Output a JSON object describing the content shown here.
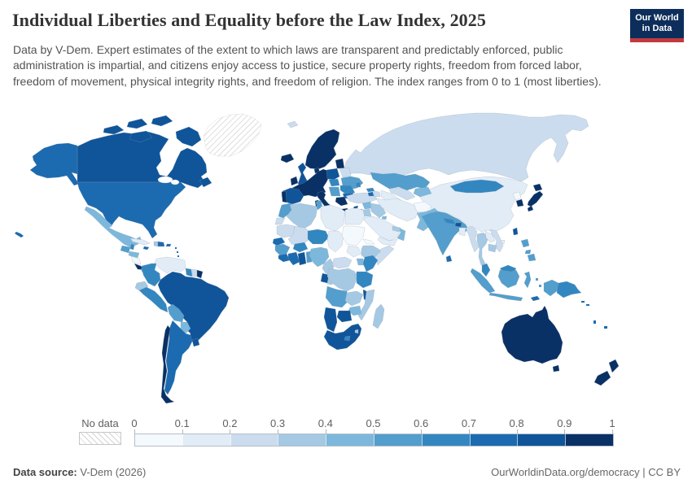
{
  "header": {
    "title": "Individual Liberties and Equality before the Law Index, 2025",
    "subtitle": "Data by V-Dem. Expert estimates of the extent to which laws are transparent and predictably enforced, public administration is impartial, and citizens enjoy access to justice, secure property rights, freedom from forced labor, freedom of movement, physical integrity rights, and freedom of religion. The index ranges from 0 to 1 (most liberties).",
    "logo": {
      "line1": "Our World",
      "line2": "in Data",
      "bg": "#0d2e5b",
      "accent": "#c23a3f"
    }
  },
  "legend": {
    "no_data_label": "No data",
    "ticks": [
      "0",
      "0.1",
      "0.2",
      "0.3",
      "0.4",
      "0.5",
      "0.6",
      "0.7",
      "0.8",
      "0.9",
      "1"
    ]
  },
  "footer": {
    "source_label": "Data source:",
    "source_value": " V-Dem (2026)",
    "right_text": "OurWorldinData.org/democracy | CC BY"
  },
  "chart_data": {
    "type": "heatmap",
    "subtype": "world-choropleth",
    "title": "Individual Liberties and Equality before the Law Index, 2025",
    "unit": "index",
    "range": [
      0,
      1
    ],
    "bin_edges": [
      0,
      0.1,
      0.2,
      0.3,
      0.4,
      0.5,
      0.6,
      0.7,
      0.8,
      0.9,
      1
    ],
    "palette": [
      "#f4f9fd",
      "#e2ecf7",
      "#cbdcef",
      "#a5c9e3",
      "#7db8dc",
      "#539ecc",
      "#3387c0",
      "#1c6bb0",
      "#10559a",
      "#0a3166"
    ],
    "no_data_pattern": "diagonal-hatch",
    "regions": [
      {
        "id": "canada",
        "name": "Canada",
        "value": 0.85
      },
      {
        "id": "greenland",
        "name": "Greenland",
        "value": null
      },
      {
        "id": "usa",
        "name": "United States",
        "value": 0.75
      },
      {
        "id": "mexico",
        "name": "Mexico",
        "value": 0.45
      },
      {
        "id": "guatemala",
        "name": "Guatemala",
        "value": 0.55
      },
      {
        "id": "belize",
        "name": "Belize",
        "value": 0.62
      },
      {
        "id": "honduras",
        "name": "Honduras",
        "value": 0.45
      },
      {
        "id": "nicaragua",
        "name": "Nicaragua",
        "value": 0.08
      },
      {
        "id": "costa-rica",
        "name": "Costa Rica",
        "value": 0.92
      },
      {
        "id": "panama",
        "name": "Panama",
        "value": 0.62
      },
      {
        "id": "cuba",
        "name": "Cuba",
        "value": 0.15
      },
      {
        "id": "jamaica",
        "name": "Jamaica",
        "value": 0.75
      },
      {
        "id": "haiti",
        "name": "Haiti",
        "value": 0.35
      },
      {
        "id": "dominican-republic",
        "name": "Dominican Republic",
        "value": 0.72
      },
      {
        "id": "puerto-rico",
        "name": "Puerto Rico",
        "value": 0.75
      },
      {
        "id": "lesser-antilles",
        "name": "Lesser Antilles",
        "value": 0.78
      },
      {
        "id": "trinidad-and-tobago",
        "name": "Trinidad and Tobago",
        "value": 0.72
      },
      {
        "id": "venezuela",
        "name": "Venezuela",
        "value": 0.12
      },
      {
        "id": "colombia",
        "name": "Colombia",
        "value": 0.65
      },
      {
        "id": "guyana",
        "name": "Guyana",
        "value": 0.62
      },
      {
        "id": "suriname",
        "name": "Suriname",
        "value": 0.25
      },
      {
        "id": "french-guiana",
        "name": "French Guiana",
        "value": 0.95
      },
      {
        "id": "ecuador",
        "name": "Ecuador",
        "value": 0.38
      },
      {
        "id": "peru",
        "name": "Peru",
        "value": 0.68
      },
      {
        "id": "brazil",
        "name": "Brazil",
        "value": 0.82
      },
      {
        "id": "bolivia",
        "name": "Bolivia",
        "value": 0.52
      },
      {
        "id": "paraguay",
        "name": "Paraguay",
        "value": 0.48
      },
      {
        "id": "uruguay",
        "name": "Uruguay",
        "value": 0.88
      },
      {
        "id": "argentina",
        "name": "Argentina",
        "value": 0.75
      },
      {
        "id": "chile",
        "name": "Chile",
        "value": 0.93
      },
      {
        "id": "iceland",
        "name": "Iceland",
        "value": 0.95
      },
      {
        "id": "united-kingdom",
        "name": "United Kingdom",
        "value": 0.85
      },
      {
        "id": "ireland",
        "name": "Ireland",
        "value": 0.95
      },
      {
        "id": "scandinavia",
        "name": "Norway, Sweden & Finland",
        "value": 0.95
      },
      {
        "id": "denmark",
        "name": "Denmark",
        "value": 0.95
      },
      {
        "id": "western-europe",
        "name": "Western & Central Europe",
        "value": 0.95
      },
      {
        "id": "spain",
        "name": "Spain",
        "value": 0.88
      },
      {
        "id": "portugal",
        "name": "Portugal",
        "value": 0.95
      },
      {
        "id": "italy",
        "name": "Italy",
        "value": 0.92
      },
      {
        "id": "poland",
        "name": "Poland",
        "value": 0.88
      },
      {
        "id": "baltic-states",
        "name": "Baltic states",
        "value": 0.9
      },
      {
        "id": "belarus",
        "name": "Belarus",
        "value": 0.25
      },
      {
        "id": "ukraine",
        "name": "Ukraine",
        "value": 0.55
      },
      {
        "id": "moldova",
        "name": "Moldova",
        "value": 0.68
      },
      {
        "id": "hungary-slovakia",
        "name": "Hungary & Slovakia",
        "value": 0.68
      },
      {
        "id": "romania",
        "name": "Romania",
        "value": 0.68
      },
      {
        "id": "bulgaria",
        "name": "Bulgaria",
        "value": 0.78
      },
      {
        "id": "balkans",
        "name": "Western Balkans",
        "value": 0.58
      },
      {
        "id": "greece",
        "name": "Greece",
        "value": 0.92
      },
      {
        "id": "russia",
        "name": "Russia",
        "value": 0.25
      },
      {
        "id": "svalbard",
        "name": "Svalbard",
        "value": 0.25
      },
      {
        "id": "turkey",
        "name": "Turkey",
        "value": 0.28
      },
      {
        "id": "cyprus",
        "name": "Cyprus",
        "value": 0.88
      },
      {
        "id": "georgia",
        "name": "Georgia",
        "value": 0.65
      },
      {
        "id": "armenia",
        "name": "Armenia",
        "value": 0.78
      },
      {
        "id": "azerbaijan",
        "name": "Azerbaijan",
        "value": 0.28
      },
      {
        "id": "kazakhstan",
        "name": "Kazakhstan",
        "value": 0.55
      },
      {
        "id": "uzbekistan",
        "name": "Uzbekistan",
        "value": 0.25
      },
      {
        "id": "turkmenistan",
        "name": "Turkmenistan",
        "value": 0.15
      },
      {
        "id": "kyrgyzstan-tajikistan",
        "name": "Kyrgyzstan & Tajikistan",
        "value": 0.45
      },
      {
        "id": "syria",
        "name": "Syria",
        "value": 0.45
      },
      {
        "id": "israel",
        "name": "Israel",
        "value": 0.72
      },
      {
        "id": "jordan",
        "name": "Jordan",
        "value": 0.35
      },
      {
        "id": "iraq",
        "name": "Iraq",
        "value": 0.3
      },
      {
        "id": "saudi-arabia",
        "name": "Saudi Arabia",
        "value": 0.12
      },
      {
        "id": "yemen",
        "name": "Yemen",
        "value": 0.12
      },
      {
        "id": "oman",
        "name": "Oman",
        "value": 0.45
      },
      {
        "id": "uae-qatar",
        "name": "UAE & Qatar",
        "value": 0.35
      },
      {
        "id": "kuwait",
        "name": "Kuwait",
        "value": 0.45
      },
      {
        "id": "iran",
        "name": "Iran",
        "value": 0.15
      },
      {
        "id": "afghanistan",
        "name": "Afghanistan",
        "value": 0.08
      },
      {
        "id": "pakistan",
        "name": "Pakistan",
        "value": 0.42
      },
      {
        "id": "india",
        "name": "India",
        "value": 0.52
      },
      {
        "id": "nepal",
        "name": "Nepal",
        "value": 0.62
      },
      {
        "id": "bhutan",
        "name": "Bhutan",
        "value": 0.85
      },
      {
        "id": "bangladesh",
        "name": "Bangladesh",
        "value": 0.15
      },
      {
        "id": "sri-lanka",
        "name": "Sri Lanka",
        "value": 0.72
      },
      {
        "id": "myanmar",
        "name": "Myanmar",
        "value": 0.22
      },
      {
        "id": "thailand",
        "name": "Thailand",
        "value": 0.32
      },
      {
        "id": "laos",
        "name": "Laos",
        "value": 0.18
      },
      {
        "id": "vietnam",
        "name": "Vietnam",
        "value": 0.25
      },
      {
        "id": "cambodia",
        "name": "Cambodia",
        "value": 0.32
      },
      {
        "id": "china",
        "name": "China",
        "value": 0.15
      },
      {
        "id": "mongolia",
        "name": "Mongolia",
        "value": 0.65
      },
      {
        "id": "north-korea",
        "name": "North Korea",
        "value": 0.08
      },
      {
        "id": "south-korea",
        "name": "South Korea",
        "value": 0.92
      },
      {
        "id": "japan",
        "name": "Japan",
        "value": 0.95
      },
      {
        "id": "taiwan",
        "name": "Taiwan",
        "value": 0.88
      },
      {
        "id": "philippines",
        "name": "Philippines",
        "value": 0.52
      },
      {
        "id": "malaysia",
        "name": "Malaysia",
        "value": 0.68
      },
      {
        "id": "indonesia",
        "name": "Indonesia",
        "value": 0.52
      },
      {
        "id": "timor-leste",
        "name": "Timor-Leste",
        "value": 0.75
      },
      {
        "id": "papua-new-guinea",
        "name": "Papua New Guinea",
        "value": 0.62
      },
      {
        "id": "solomon-islands",
        "name": "Solomon Islands",
        "value": 0.78
      },
      {
        "id": "vanuatu",
        "name": "Vanuatu",
        "value": 0.78
      },
      {
        "id": "fiji",
        "name": "Fiji",
        "value": 0.72
      },
      {
        "id": "australia",
        "name": "Australia",
        "value": 0.92
      },
      {
        "id": "new-zealand",
        "name": "New Zealand",
        "value": 0.95
      },
      {
        "id": "morocco",
        "name": "Morocco",
        "value": 0.52
      },
      {
        "id": "western-sahara",
        "name": "Western Sahara",
        "value": 0.25
      },
      {
        "id": "algeria",
        "name": "Algeria",
        "value": 0.32
      },
      {
        "id": "tunisia",
        "name": "Tunisia",
        "value": 0.52
      },
      {
        "id": "libya",
        "name": "Libya",
        "value": 0.1
      },
      {
        "id": "egypt",
        "name": "Egypt",
        "value": 0.18
      },
      {
        "id": "mauritania",
        "name": "Mauritania",
        "value": 0.25
      },
      {
        "id": "mali",
        "name": "Mali",
        "value": 0.28
      },
      {
        "id": "niger",
        "name": "Niger",
        "value": 0.62
      },
      {
        "id": "chad",
        "name": "Chad",
        "value": 0.1
      },
      {
        "id": "sudan",
        "name": "Sudan",
        "value": 0.08
      },
      {
        "id": "eritrea",
        "name": "Eritrea",
        "value": 0.08
      },
      {
        "id": "ethiopia",
        "name": "Ethiopia",
        "value": 0.32
      },
      {
        "id": "somalia",
        "name": "Somalia",
        "value": 0.22
      },
      {
        "id": "senegal",
        "name": "Senegal & Gambia",
        "value": 0.75
      },
      {
        "id": "guinea",
        "name": "Guinea",
        "value": 0.5
      },
      {
        "id": "sierra-leone-liberia",
        "name": "Sierra Leone & Liberia",
        "value": 0.7
      },
      {
        "id": "ivory-coast",
        "name": "Côte d'Ivoire",
        "value": 0.72
      },
      {
        "id": "ghana",
        "name": "Ghana",
        "value": 0.85
      },
      {
        "id": "togo-benin",
        "name": "Togo & Benin",
        "value": 0.5
      },
      {
        "id": "burkina-faso",
        "name": "Burkina Faso",
        "value": 0.62
      },
      {
        "id": "nigeria",
        "name": "Nigeria",
        "value": 0.48
      },
      {
        "id": "cameroon",
        "name": "Cameroon",
        "value": 0.35
      },
      {
        "id": "central-african-republic",
        "name": "Central African Republic",
        "value": 0.22
      },
      {
        "id": "south-sudan",
        "name": "South Sudan",
        "value": 0.15
      },
      {
        "id": "uganda",
        "name": "Uganda",
        "value": 0.42
      },
      {
        "id": "kenya",
        "name": "Kenya",
        "value": 0.62
      },
      {
        "id": "drc",
        "name": "Democratic Republic of Congo",
        "value": 0.3
      },
      {
        "id": "gabon",
        "name": "Gabon",
        "value": 0.82
      },
      {
        "id": "congo",
        "name": "Congo",
        "value": 0.38
      },
      {
        "id": "rwanda-burundi",
        "name": "Rwanda & Burundi",
        "value": 0.35
      },
      {
        "id": "tanzania",
        "name": "Tanzania",
        "value": 0.62
      },
      {
        "id": "angola",
        "name": "Angola",
        "value": 0.52
      },
      {
        "id": "zambia",
        "name": "Zambia",
        "value": 0.38
      },
      {
        "id": "malawi",
        "name": "Malawi",
        "value": 0.82
      },
      {
        "id": "mozambique",
        "name": "Mozambique",
        "value": 0.35
      },
      {
        "id": "zimbabwe",
        "name": "Zimbabwe",
        "value": 0.42
      },
      {
        "id": "botswana",
        "name": "Botswana",
        "value": 0.82
      },
      {
        "id": "namibia",
        "name": "Namibia",
        "value": 0.82
      },
      {
        "id": "south-africa",
        "name": "South Africa",
        "value": 0.82
      },
      {
        "id": "lesotho",
        "name": "Lesotho",
        "value": 0.68
      },
      {
        "id": "eswatini",
        "name": "Eswatini",
        "value": 0.35
      },
      {
        "id": "madagascar",
        "name": "Madagascar",
        "value": 0.38
      }
    ]
  }
}
